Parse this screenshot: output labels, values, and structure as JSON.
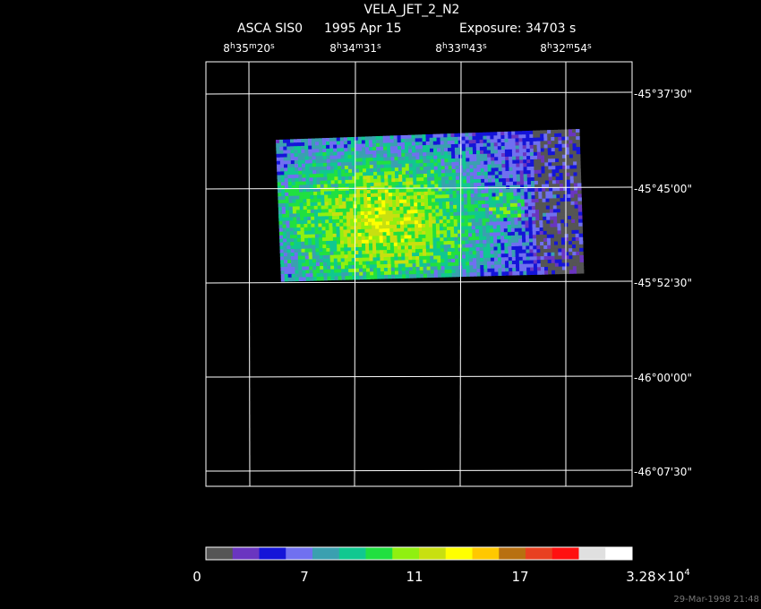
{
  "header": {
    "title": "VELA_JET_2_N2",
    "instrument": "ASCA SIS0",
    "date": "1995 Apr 15",
    "exposure": "Exposure: 34703 s"
  },
  "ra_labels": [
    [
      "8",
      "h",
      "35",
      "m",
      "20",
      "s"
    ],
    [
      "8",
      "h",
      "34",
      "m",
      "31",
      "s"
    ],
    [
      "8",
      "h",
      "33",
      "m",
      "43",
      "s"
    ],
    [
      "8",
      "h",
      "32",
      "m",
      "54",
      "s"
    ]
  ],
  "dec_labels": [
    "-45°37'30\"",
    "-45°45'00\"",
    "-45°52'30\"",
    "-46°00'00\"",
    "-46°07'30\""
  ],
  "colorbar": {
    "colors": [
      "#555555",
      "#6a35c0",
      "#1414d8",
      "#7070f0",
      "#3aa0b0",
      "#10c890",
      "#20e040",
      "#90f010",
      "#c8e010",
      "#ffff00",
      "#ffc800",
      "#b87010",
      "#e84020",
      "#ff1010",
      "#e0e0e0",
      "#ffffff"
    ],
    "labels": [
      [
        "0"
      ],
      [
        "7"
      ],
      [
        "11"
      ],
      [
        "17"
      ],
      [
        "3.28×10",
        "4"
      ]
    ]
  },
  "timestamp": "29-Mar-1998 21:48"
}
